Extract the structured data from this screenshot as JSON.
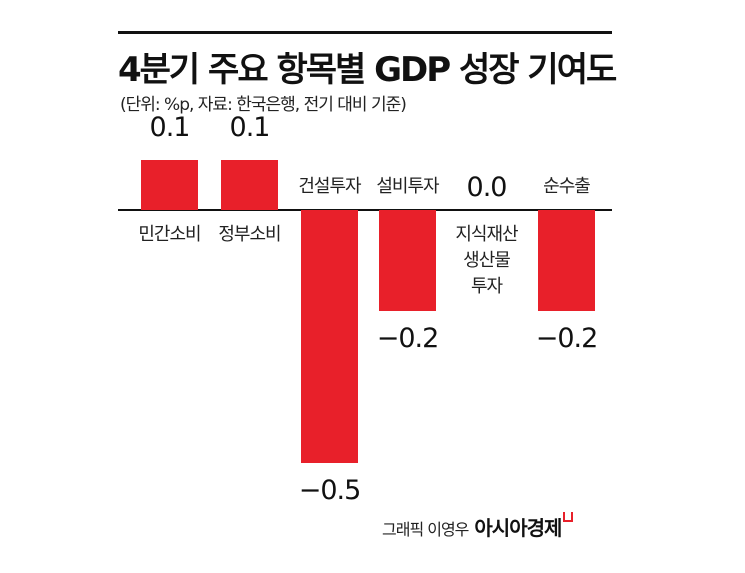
{
  "chart_data": {
    "type": "bar",
    "title": "4분기 주요 항목별 GDP 성장 기여도",
    "subtitle": "(단위: %p, 자료: 한국은행, 전기 대비 기준)",
    "categories": [
      "민간소비",
      "정부소비",
      "건설투자",
      "설비투자",
      "지식재산 생산물 투자",
      "순수출"
    ],
    "values": [
      0.1,
      0.1,
      -0.5,
      -0.2,
      0.0,
      -0.2
    ],
    "value_labels": [
      "0.1",
      "0.1",
      "−0.5",
      "−0.2",
      "0.0",
      "−0.2"
    ],
    "bar_color": "#e8202a",
    "grid": false
  },
  "credit": {
    "text": "그래픽 이영우",
    "brand": "아시아경제"
  }
}
